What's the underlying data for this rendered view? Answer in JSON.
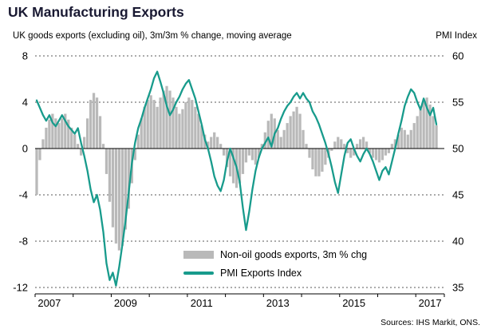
{
  "header": {
    "title": "UK Manufacturing Exports",
    "subtitle": "UK goods exports (excluding oil), 3m/3m % change, moving average",
    "right_axis_title": "PMI Index"
  },
  "legend": {
    "bar_label": "Non-oil goods exports, 3m % chg",
    "line_label": "PMI Exports Index"
  },
  "source": "Sources: IHS Markit, ONS.",
  "colors": {
    "bar": "#b9b9b9",
    "line": "#189b8c",
    "gridline": "#595959",
    "axis": "#000000"
  },
  "chart_data": {
    "type": "bar",
    "subtype": "bar+line combo, monthly series",
    "x_start": "2007-01",
    "x_end": "2017-07",
    "x_frequency": "monthly",
    "x_axis": {
      "domain": [
        2007,
        2017.75
      ],
      "tick_years": [
        2007,
        2008,
        2009,
        2010,
        2011,
        2012,
        2013,
        2014,
        2015,
        2016,
        2017
      ],
      "label_years": [
        2007,
        2009,
        2011,
        2013,
        2015,
        2017
      ]
    },
    "left_axis": {
      "min": -12,
      "max": 8,
      "ticks": [
        8,
        4,
        0,
        -4,
        -8,
        -12
      ],
      "label": "3m/3m % change"
    },
    "right_axis": {
      "min": 35,
      "max": 60,
      "ticks": [
        60,
        55,
        50,
        45,
        40,
        35
      ],
      "label": "PMI Index"
    },
    "grid": "horizontal dashed, solid zero line",
    "legend_position": "inside bottom center",
    "series": [
      {
        "name": "Non-oil goods exports, 3m % chg",
        "type": "bar",
        "axis": "left",
        "values": [
          -4.0,
          -1.0,
          0.8,
          1.8,
          2.5,
          3.0,
          2.6,
          2.2,
          2.6,
          3.0,
          2.5,
          1.8,
          1.2,
          0.4,
          -0.6,
          1.0,
          2.6,
          4.2,
          4.8,
          4.4,
          2.8,
          0.4,
          -2.2,
          -4.6,
          -6.8,
          -8.2,
          -8.8,
          -8.4,
          -7.0,
          -5.2,
          -3.0,
          -1.0,
          1.2,
          2.6,
          3.6,
          4.2,
          4.6,
          4.2,
          3.6,
          4.4,
          5.0,
          5.4,
          5.0,
          4.4,
          3.6,
          3.0,
          3.4,
          4.0,
          4.4,
          4.2,
          3.6,
          3.0,
          2.0,
          1.2,
          0.6,
          1.0,
          1.4,
          1.0,
          0.4,
          -0.6,
          -1.6,
          -2.4,
          -3.0,
          -3.4,
          -3.0,
          -2.2,
          -1.2,
          -0.6,
          -1.0,
          -1.4,
          -0.8,
          0.4,
          1.4,
          2.4,
          3.0,
          2.6,
          1.6,
          1.0,
          1.6,
          2.2,
          2.8,
          3.2,
          3.6,
          3.0,
          1.6,
          0.4,
          -0.8,
          -1.8,
          -2.4,
          -2.4,
          -2.0,
          -1.4,
          -0.8,
          -0.2,
          0.6,
          1.0,
          0.8,
          0.4,
          -0.4,
          -0.8,
          -0.6,
          0.4,
          0.8,
          1.0,
          0.6,
          -0.4,
          -0.8,
          -1.0,
          -1.2,
          -1.0,
          -0.6,
          -0.4,
          0.4,
          0.8,
          1.2,
          1.8,
          1.6,
          1.2,
          1.6,
          2.2,
          2.8,
          3.4,
          4.0,
          4.4,
          3.8,
          2.8,
          2.0
        ]
      },
      {
        "name": "PMI Exports Index",
        "type": "line",
        "axis": "right",
        "values": [
          55.2,
          54.4,
          53.6,
          53.0,
          53.6,
          52.8,
          52.4,
          53.0,
          53.6,
          53.0,
          52.4,
          52.0,
          51.6,
          52.2,
          50.6,
          49.2,
          47.6,
          45.6,
          44.2,
          45.0,
          43.4,
          41.0,
          37.6,
          35.8,
          36.6,
          35.2,
          37.2,
          39.6,
          42.2,
          45.2,
          48.4,
          50.6,
          52.2,
          53.2,
          54.4,
          55.4,
          56.4,
          57.6,
          58.3,
          57.2,
          56.0,
          54.6,
          53.6,
          54.2,
          55.0,
          55.6,
          56.4,
          57.0,
          57.4,
          56.4,
          55.4,
          54.0,
          52.6,
          51.0,
          50.0,
          48.6,
          47.0,
          46.0,
          45.4,
          46.6,
          48.6,
          50.0,
          49.0,
          48.0,
          46.4,
          43.6,
          41.2,
          43.2,
          45.6,
          47.6,
          49.0,
          50.0,
          50.6,
          51.2,
          50.2,
          51.6,
          52.2,
          53.2,
          54.0,
          54.6,
          55.0,
          55.6,
          56.0,
          55.4,
          56.0,
          55.4,
          55.0,
          54.0,
          53.4,
          52.6,
          51.6,
          50.6,
          49.4,
          48.0,
          46.4,
          45.2,
          47.2,
          49.2,
          50.6,
          51.0,
          50.0,
          49.2,
          48.6,
          49.4,
          50.0,
          49.4,
          48.6,
          47.6,
          46.6,
          47.6,
          48.0,
          47.2,
          48.6,
          50.0,
          51.6,
          53.0,
          54.6,
          55.6,
          56.4,
          56.0,
          55.0,
          54.2,
          55.4,
          54.4,
          53.6,
          54.4,
          52.6
        ]
      }
    ]
  }
}
